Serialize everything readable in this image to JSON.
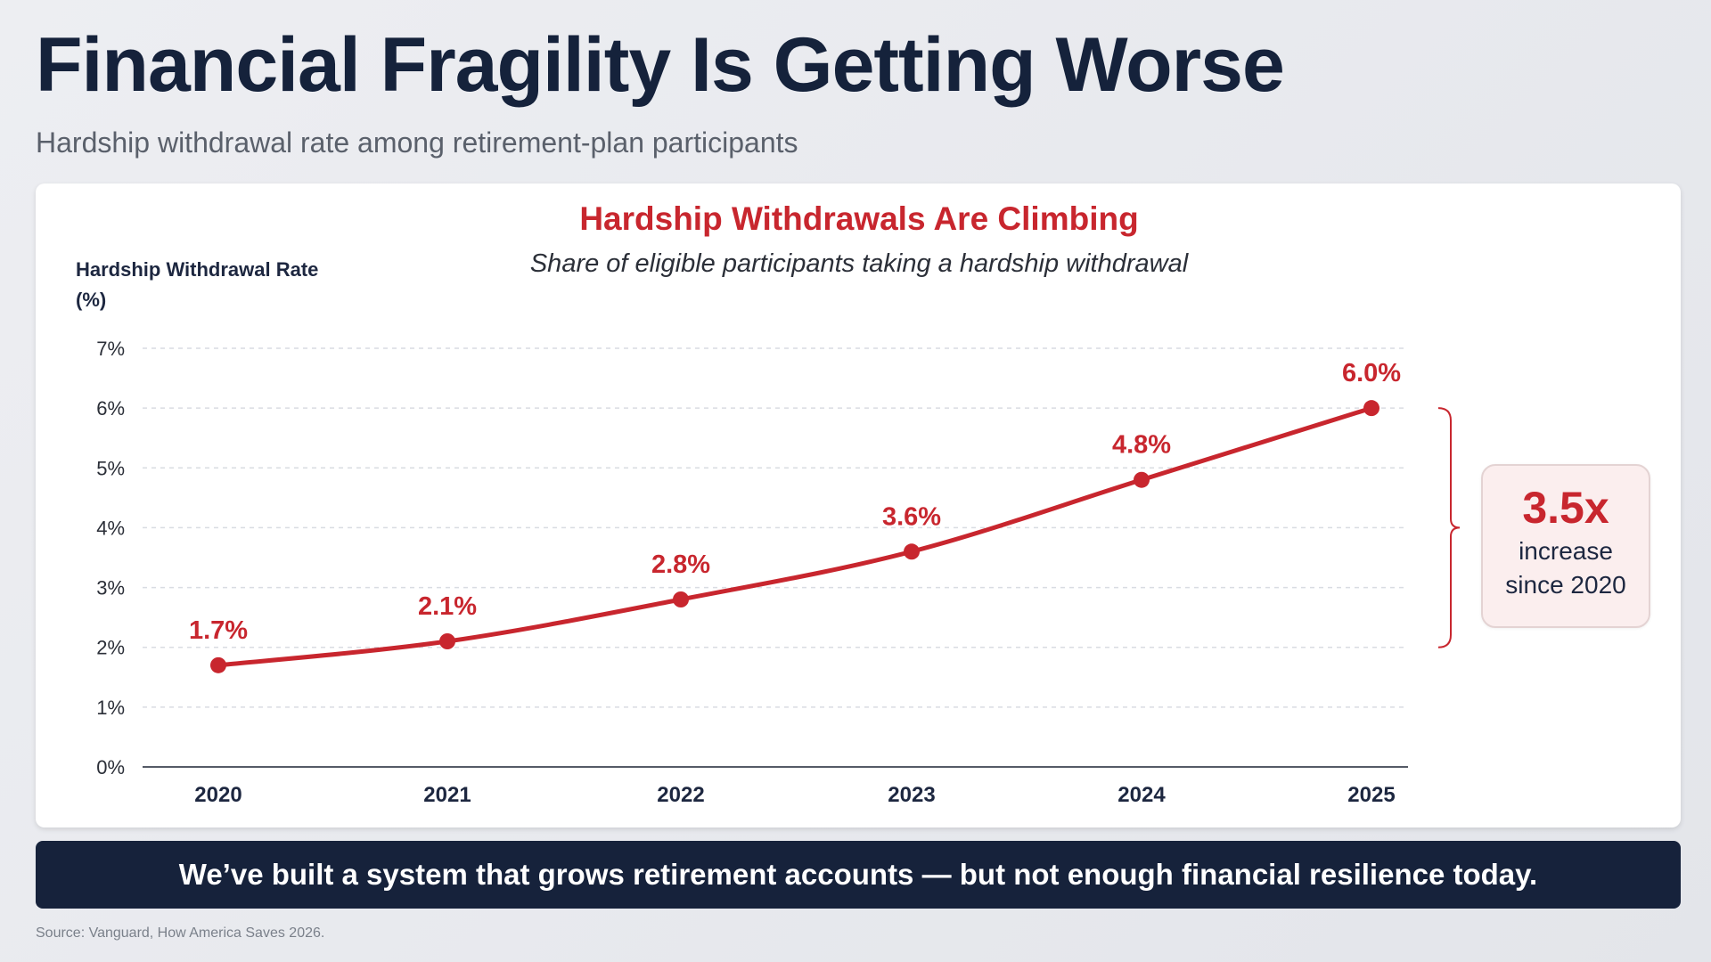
{
  "header": {
    "title": "Financial Fragility Is Getting Worse",
    "subtitle": "Hardship withdrawal rate among retirement-plan participants"
  },
  "colors": {
    "accent_red": "#c8262e",
    "navy": "#16223b",
    "callout_bg": "#fbeeee"
  },
  "callout": {
    "value": "3.5x",
    "line1": "increase",
    "line2": "since 2020"
  },
  "banner": {
    "text": "We’ve built a system that grows retirement accounts — but not enough financial resilience today."
  },
  "source": "Source: Vanguard, How America Saves 2026.",
  "chart_data": {
    "type": "line",
    "title": "Hardship Withdrawals Are Climbing",
    "subtitle": "Share of eligible participants taking a hardship withdrawal",
    "ylabel_line1": "Hardship Withdrawal Rate",
    "ylabel_line2": "(%)",
    "xlabel": "",
    "x": [
      "2020",
      "2021",
      "2022",
      "2023",
      "2024",
      "2025"
    ],
    "series": [
      {
        "values": [
          1.7,
          2.1,
          2.8,
          3.6,
          4.8,
          6.0
        ]
      }
    ],
    "data_labels": [
      "1.7%",
      "2.1%",
      "2.8%",
      "3.6%",
      "4.8%",
      "6.0%"
    ],
    "ylim": [
      0,
      7
    ],
    "yticks": [
      0,
      1,
      2,
      3,
      4,
      5,
      6,
      7
    ],
    "ytick_labels": [
      "0%",
      "1%",
      "2%",
      "3%",
      "4%",
      "5%",
      "6%",
      "7%"
    ],
    "grid": "horizontal dashed",
    "bracket": {
      "from": 2,
      "to": 6
    }
  }
}
